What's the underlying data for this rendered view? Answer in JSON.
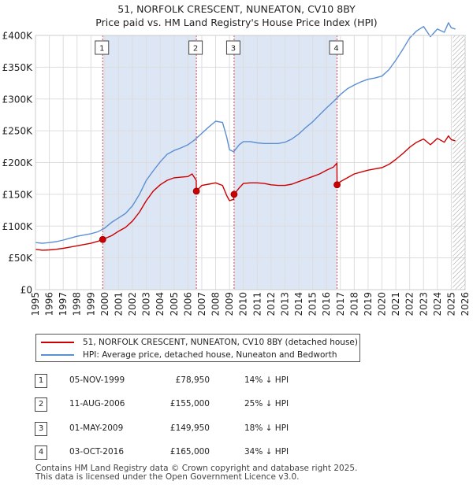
{
  "title_line1": "51, NORFOLK CRESCENT, NUNEATON, CV10 8BY",
  "title_line2": "Price paid vs. HM Land Registry's House Price Index (HPI)",
  "colors": {
    "property": "#cc0000",
    "hpi": "#5b8fd4",
    "shade": "#dde6f5",
    "marker_line": "#dd4444",
    "grid": "#dddddd"
  },
  "legend": {
    "property_label": "51, NORFOLK CRESCENT, NUNEATON, CV10 8BY (detached house)",
    "hpi_label": "HPI: Average price, detached house, Nuneaton and Bedworth"
  },
  "transactions": [
    {
      "num": "1",
      "date": "05-NOV-1999",
      "price": "£78,950",
      "hpi": "14% ↓ HPI"
    },
    {
      "num": "2",
      "date": "11-AUG-2006",
      "price": "£155,000",
      "hpi": "25% ↓ HPI"
    },
    {
      "num": "3",
      "date": "01-MAY-2009",
      "price": "£149,950",
      "hpi": "18% ↓ HPI"
    },
    {
      "num": "4",
      "date": "03-OCT-2016",
      "price": "£165,000",
      "hpi": "34% ↓ HPI"
    }
  ],
  "footer_line1": "Contains HM Land Registry data © Crown copyright and database right 2025.",
  "footer_line2": "This data is licensed under the Open Government Licence v3.0.",
  "chart_data": {
    "type": "line",
    "title": "51, NORFOLK CRESCENT, NUNEATON, CV10 8BY — Price paid vs. HM Land Registry's House Price Index (HPI)",
    "xlabel": "",
    "ylabel": "",
    "xlim": [
      1995,
      2026
    ],
    "ylim": [
      0,
      400000
    ],
    "x_ticks": [
      1995,
      1996,
      1997,
      1998,
      1999,
      2000,
      2001,
      2002,
      2003,
      2004,
      2005,
      2006,
      2007,
      2008,
      2009,
      2010,
      2011,
      2012,
      2013,
      2014,
      2015,
      2016,
      2017,
      2018,
      2019,
      2020,
      2021,
      2022,
      2023,
      2024,
      2025,
      2026
    ],
    "y_ticks": [
      {
        "value": 0,
        "label": "£0"
      },
      {
        "value": 50000,
        "label": "£50K"
      },
      {
        "value": 100000,
        "label": "£100K"
      },
      {
        "value": 150000,
        "label": "£150K"
      },
      {
        "value": 200000,
        "label": "£200K"
      },
      {
        "value": 250000,
        "label": "£250K"
      },
      {
        "value": 300000,
        "label": "£300K"
      },
      {
        "value": 350000,
        "label": "£350K"
      },
      {
        "value": 400000,
        "label": "£400K"
      }
    ],
    "shaded_ranges": [
      [
        1999.85,
        2006.61
      ],
      [
        2009.33,
        2016.76
      ]
    ],
    "future_hatch_from": 2025.1,
    "series": [
      {
        "name": "51, NORFOLK CRESCENT, NUNEATON, CV10 8BY (detached house)",
        "x": [
          1995.0,
          1995.5,
          1996.0,
          1996.5,
          1997.0,
          1997.5,
          1998.0,
          1998.5,
          1999.0,
          1999.5,
          1999.84,
          1999.85,
          2000.5,
          2001.0,
          2001.5,
          2002.0,
          2002.5,
          2003.0,
          2003.5,
          2004.0,
          2004.5,
          2005.0,
          2005.5,
          2006.0,
          2006.3,
          2006.6,
          2006.61,
          2007.0,
          2007.5,
          2008.0,
          2008.5,
          2008.8,
          2009.0,
          2009.3,
          2009.33,
          2009.7,
          2010.0,
          2010.5,
          2011.0,
          2011.5,
          2012.0,
          2012.5,
          2013.0,
          2013.5,
          2014.0,
          2014.5,
          2015.0,
          2015.5,
          2016.0,
          2016.5,
          2016.75,
          2016.76,
          2017.0,
          2017.5,
          2018.0,
          2018.5,
          2019.0,
          2019.5,
          2020.0,
          2020.5,
          2021.0,
          2021.5,
          2022.0,
          2022.5,
          2023.0,
          2023.5,
          2024.0,
          2024.5,
          2024.8,
          2025.0,
          2025.3
        ],
        "values": [
          63500,
          62000,
          62500,
          63500,
          65000,
          67000,
          69000,
          71000,
          73000,
          76000,
          78950,
          78950,
          85000,
          92000,
          98000,
          108000,
          122000,
          140000,
          155000,
          165000,
          172000,
          176000,
          177000,
          178000,
          182000,
          172000,
          155000,
          164000,
          166000,
          168000,
          164000,
          148000,
          140000,
          142000,
          149950,
          160000,
          167000,
          168000,
          168000,
          167000,
          165000,
          164000,
          164000,
          166000,
          170000,
          174000,
          178000,
          182000,
          188000,
          193000,
          199000,
          165000,
          170000,
          176000,
          182000,
          185000,
          188000,
          190000,
          192000,
          197000,
          205000,
          214000,
          224000,
          232000,
          237000,
          228000,
          238000,
          232000,
          242000,
          236000,
          234000
        ]
      },
      {
        "name": "HPI: Average price, detached house, Nuneaton and Bedworth",
        "x": [
          1995.0,
          1995.5,
          1996.0,
          1996.5,
          1997.0,
          1997.5,
          1998.0,
          1998.5,
          1999.0,
          1999.5,
          2000.0,
          2000.5,
          2001.0,
          2001.5,
          2002.0,
          2002.5,
          2003.0,
          2003.5,
          2004.0,
          2004.5,
          2005.0,
          2005.5,
          2006.0,
          2006.5,
          2007.0,
          2007.5,
          2008.0,
          2008.5,
          2008.8,
          2009.0,
          2009.3,
          2009.7,
          2010.0,
          2010.5,
          2011.0,
          2011.5,
          2012.0,
          2012.5,
          2013.0,
          2013.5,
          2014.0,
          2014.5,
          2015.0,
          2015.5,
          2016.0,
          2016.5,
          2017.0,
          2017.5,
          2018.0,
          2018.5,
          2019.0,
          2019.5,
          2020.0,
          2020.5,
          2021.0,
          2021.5,
          2022.0,
          2022.5,
          2023.0,
          2023.5,
          2024.0,
          2024.5,
          2024.8,
          2025.0,
          2025.3
        ],
        "values": [
          74000,
          73000,
          74000,
          75500,
          78000,
          81000,
          84000,
          86000,
          88000,
          91000,
          97000,
          106000,
          113000,
          120000,
          132000,
          150000,
          172000,
          187000,
          201000,
          213000,
          219000,
          223000,
          228000,
          236000,
          246000,
          256000,
          265000,
          263000,
          240000,
          220000,
          217000,
          228000,
          233000,
          233000,
          231000,
          230000,
          230000,
          230000,
          232000,
          237000,
          245000,
          255000,
          264000,
          275000,
          286000,
          296000,
          307000,
          316000,
          322000,
          327000,
          331000,
          333000,
          336000,
          346000,
          361000,
          378000,
          396000,
          407000,
          414000,
          398000,
          410000,
          405000,
          420000,
          412000,
          410000
        ]
      }
    ],
    "markers": [
      {
        "label": "1",
        "x": 1999.85,
        "y": 78950
      },
      {
        "label": "2",
        "x": 2006.61,
        "y": 155000
      },
      {
        "label": "3",
        "x": 2009.33,
        "y": 149950
      },
      {
        "label": "4",
        "x": 2016.76,
        "y": 165000
      }
    ]
  }
}
